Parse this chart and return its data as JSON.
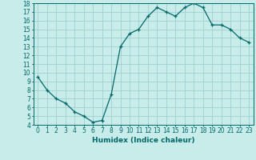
{
  "x": [
    0,
    1,
    2,
    3,
    4,
    5,
    6,
    7,
    8,
    9,
    10,
    11,
    12,
    13,
    14,
    15,
    16,
    17,
    18,
    19,
    20,
    21,
    22,
    23
  ],
  "y": [
    9.5,
    8.0,
    7.0,
    6.5,
    5.5,
    5.0,
    4.3,
    4.5,
    7.5,
    13.0,
    14.5,
    15.0,
    16.5,
    17.5,
    17.0,
    16.5,
    17.5,
    18.0,
    17.5,
    15.5,
    15.5,
    15.0,
    14.0,
    13.5
  ],
  "xlabel": "Humidex (Indice chaleur)",
  "ylim": [
    4,
    18
  ],
  "xlim": [
    -0.5,
    23.5
  ],
  "yticks": [
    4,
    5,
    6,
    7,
    8,
    9,
    10,
    11,
    12,
    13,
    14,
    15,
    16,
    17,
    18
  ],
  "xticks": [
    0,
    1,
    2,
    3,
    4,
    5,
    6,
    7,
    8,
    9,
    10,
    11,
    12,
    13,
    14,
    15,
    16,
    17,
    18,
    19,
    20,
    21,
    22,
    23
  ],
  "line_color": "#006868",
  "marker": "+",
  "markersize": 3.5,
  "linewidth": 0.9,
  "bg_color": "#c8ecea",
  "grid_color": "#a0d0ce",
  "axis_color": "#006868",
  "label_color": "#006868",
  "tick_fontsize": 5.5,
  "xlabel_fontsize": 6.5
}
